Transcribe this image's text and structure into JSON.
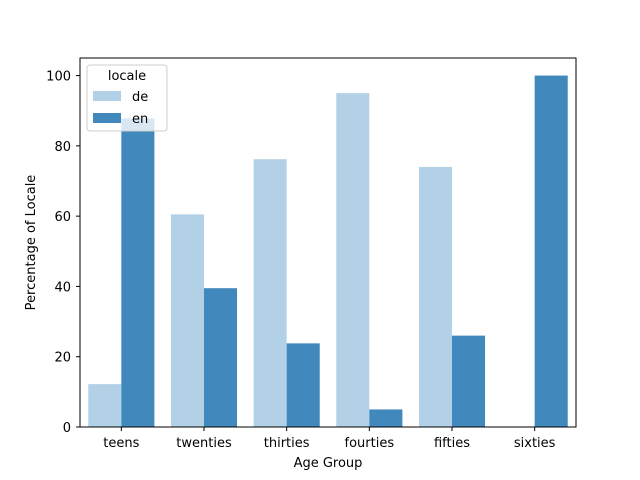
{
  "chart_data": {
    "type": "bar",
    "title": "",
    "xlabel": "Age Group",
    "ylabel": "Percentage of Locale",
    "categories": [
      "teens",
      "twenties",
      "thirties",
      "fourties",
      "fifties",
      "sixties"
    ],
    "series": [
      {
        "name": "de",
        "color": "#b3d1e6",
        "values": [
          12.2,
          60.5,
          76.2,
          95.0,
          74.0,
          0
        ]
      },
      {
        "name": "en",
        "color": "#4189bd",
        "values": [
          87.8,
          39.5,
          23.8,
          5.0,
          26.0,
          100
        ]
      }
    ],
    "ylim": [
      0,
      105
    ],
    "yticks": [
      0,
      20,
      40,
      60,
      80,
      100
    ],
    "legend": {
      "title": "locale",
      "placement": "top-left"
    },
    "grid": false
  }
}
